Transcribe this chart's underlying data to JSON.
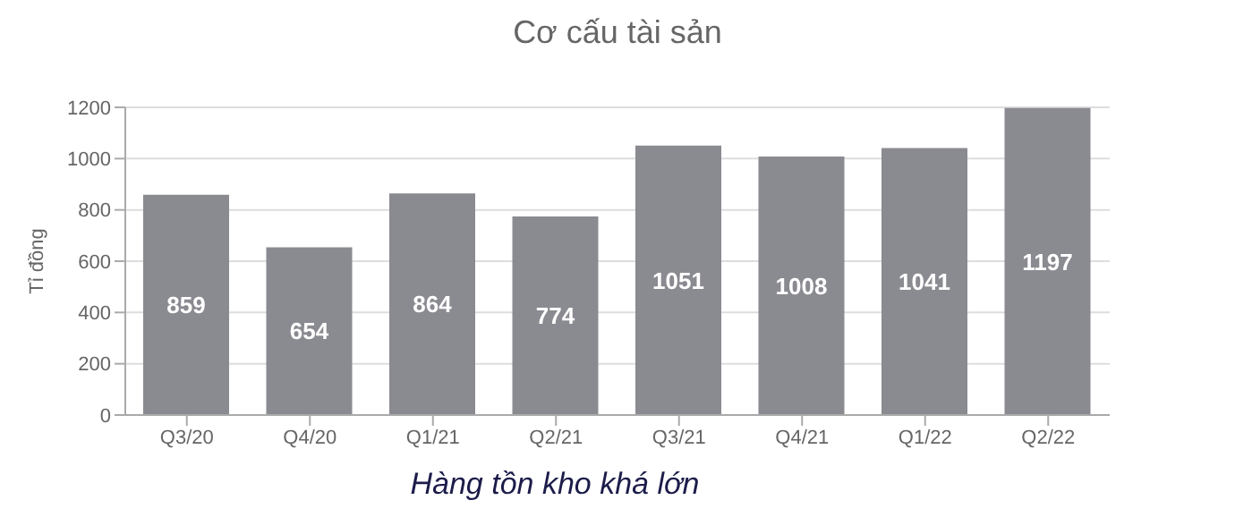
{
  "chart_data": {
    "type": "bar",
    "title": "Cơ cấu tài sản",
    "ylabel": "Tỉ đồng",
    "categories": [
      "Q3/20",
      "Q4/20",
      "Q1/21",
      "Q2/21",
      "Q3/21",
      "Q4/21",
      "Q1/22",
      "Q2/22"
    ],
    "values": [
      859,
      654,
      864,
      774,
      1051,
      1008,
      1041,
      1197
    ],
    "color": "#8a8a91",
    "ylim": [
      0,
      1200
    ],
    "yticks": [
      0,
      200,
      400,
      600,
      800,
      1000,
      1200
    ],
    "grid": "y",
    "data_labels": true,
    "annotations": [
      "Hàng tồn kho khá lớn"
    ]
  }
}
